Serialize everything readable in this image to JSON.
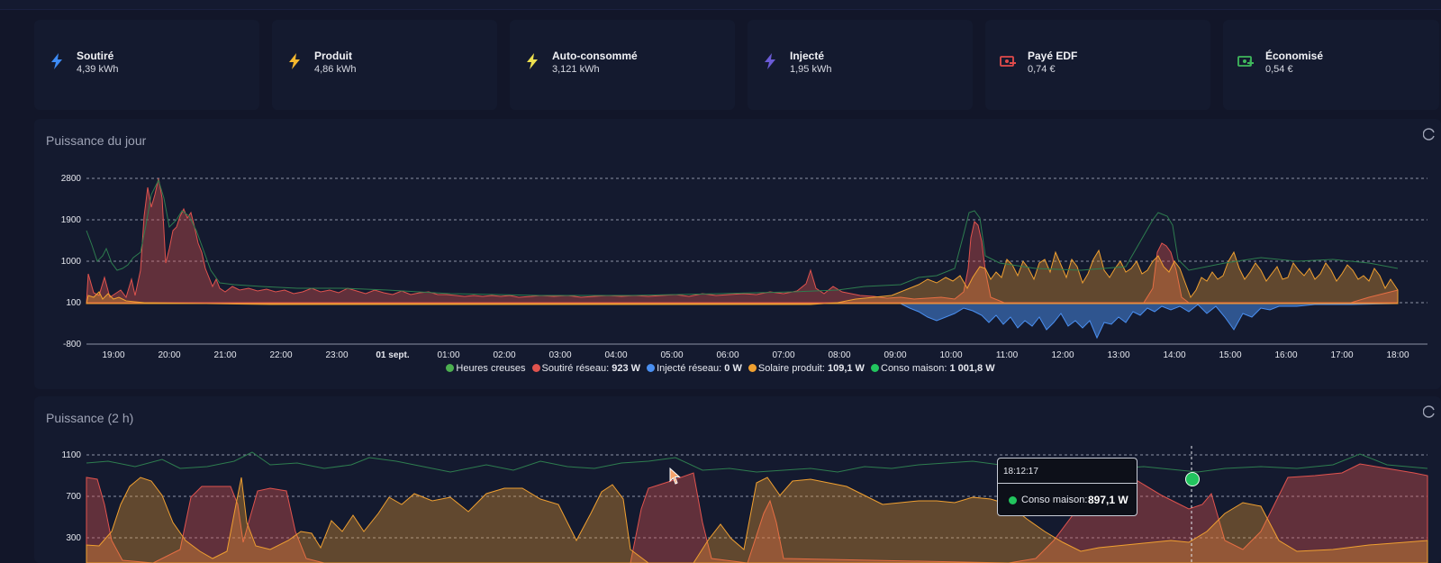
{
  "stats": [
    {
      "title": "Soutiré",
      "value": "4,39 kWh",
      "icon": "lightning-icon",
      "color": "#3d8bf5"
    },
    {
      "title": "Produit",
      "value": "4,86 kWh",
      "icon": "lightning-icon",
      "color": "#f5b82e"
    },
    {
      "title": "Auto-consommé",
      "value": "3,121 kWh",
      "icon": "lightning-icon",
      "color": "#ede04f"
    },
    {
      "title": "Injecté",
      "value": "1,95 kWh",
      "icon": "lightning-icon",
      "color": "#6b5bd6"
    },
    {
      "title": "Payé EDF",
      "value": "0,74 €",
      "icon": "money-out-icon",
      "color": "#e24b4b"
    },
    {
      "title": "Économisé",
      "value": "0,54 €",
      "icon": "money-in-icon",
      "color": "#3fb85c"
    }
  ],
  "colors": {
    "soutire": "#e0534e",
    "injecte": "#4a8ff0",
    "solaire": "#f0a030",
    "conso": "#22c55e",
    "heures_creuses": "#4caf50"
  },
  "panel_day": {
    "title": "Puissance du jour",
    "legend": [
      {
        "label": "Heures creuses",
        "value": ""
      },
      {
        "label": "Soutiré réseau:",
        "value": "923 W"
      },
      {
        "label": "Injecté réseau:",
        "value": "0 W"
      },
      {
        "label": "Solaire produit:",
        "value": "109,1 W"
      },
      {
        "label": "Conso maison:",
        "value": "1 001,8 W"
      }
    ]
  },
  "panel_2h": {
    "title": "Puissance (2 h)",
    "tooltip": {
      "time": "18:12:17",
      "label": "Conso maison:",
      "value": "897,1 W"
    }
  },
  "chart_data": [
    {
      "type": "area",
      "title": "Puissance du jour",
      "x_ticks": [
        "19:00",
        "20:00",
        "21:00",
        "22:00",
        "23:00",
        "01 sept.",
        "01:00",
        "02:00",
        "03:00",
        "04:00",
        "05:00",
        "06:00",
        "07:00",
        "08:00",
        "09:00",
        "10:00",
        "11:00",
        "12:00",
        "13:00",
        "14:00",
        "15:00",
        "16:00",
        "17:00",
        "18:00"
      ],
      "y_ticks": [
        "2800",
        "1900",
        "1000",
        "100",
        "-800"
      ],
      "ylim": [
        -800,
        2800
      ],
      "grid": true,
      "legend_position": "bottom",
      "series": [
        {
          "name": "Soutiré réseau",
          "values": [
            [
              18.55,
              600
            ],
            [
              18.7,
              150
            ],
            [
              19.0,
              180
            ],
            [
              19.3,
              400
            ],
            [
              19.55,
              500
            ],
            [
              19.75,
              2700
            ],
            [
              19.9,
              1800
            ],
            [
              20.1,
              1000
            ],
            [
              20.4,
              2000
            ],
            [
              20.6,
              900
            ],
            [
              21.0,
              300
            ],
            [
              22.0,
              230
            ],
            [
              23.0,
              220
            ],
            [
              0.0,
              200
            ],
            [
              1.0,
              190
            ],
            [
              2.0,
              160
            ],
            [
              3.0,
              150
            ],
            [
              4.0,
              160
            ],
            [
              5.0,
              170
            ],
            [
              6.0,
              170
            ],
            [
              7.0,
              200
            ],
            [
              8.0,
              250
            ],
            [
              8.5,
              300
            ],
            [
              9.0,
              200
            ],
            [
              10.0,
              100
            ],
            [
              10.6,
              400
            ],
            [
              10.75,
              1800
            ],
            [
              10.9,
              700
            ],
            [
              11.2,
              100
            ],
            [
              12.0,
              0
            ],
            [
              13.0,
              0
            ],
            [
              14.0,
              200
            ],
            [
              14.2,
              1200
            ],
            [
              14.5,
              700
            ],
            [
              15.0,
              100
            ],
            [
              16.0,
              50
            ],
            [
              17.0,
              100
            ],
            [
              18.0,
              400
            ],
            [
              18.55,
              600
            ]
          ]
        },
        {
          "name": "Injecté réseau",
          "values": [
            [
              18.55,
              0
            ],
            [
              9.0,
              0
            ],
            [
              10.0,
              -100
            ],
            [
              10.5,
              -400
            ],
            [
              11.0,
              -300
            ],
            [
              11.5,
              -500
            ],
            [
              12.0,
              -600
            ],
            [
              12.5,
              -700
            ],
            [
              13.0,
              -750
            ],
            [
              13.5,
              -400
            ],
            [
              14.0,
              -300
            ],
            [
              14.5,
              -200
            ],
            [
              15.0,
              -200
            ],
            [
              15.5,
              -500
            ],
            [
              16.0,
              -100
            ],
            [
              17.0,
              -50
            ],
            [
              18.55,
              0
            ]
          ]
        },
        {
          "name": "Solaire produit",
          "values": [
            [
              18.55,
              400
            ],
            [
              18.8,
              100
            ],
            [
              19.5,
              0
            ],
            [
              8.0,
              30
            ],
            [
              9.0,
              150
            ],
            [
              10.0,
              500
            ],
            [
              10.5,
              800
            ],
            [
              11.0,
              600
            ],
            [
              11.5,
              1100
            ],
            [
              12.0,
              900
            ],
            [
              12.5,
              1200
            ],
            [
              13.0,
              800
            ],
            [
              13.5,
              1100
            ],
            [
              14.0,
              600
            ],
            [
              14.5,
              1000
            ],
            [
              15.0,
              300
            ],
            [
              15.5,
              1100
            ],
            [
              16.0,
              800
            ],
            [
              16.5,
              1000
            ],
            [
              17.0,
              700
            ],
            [
              17.5,
              900
            ],
            [
              18.0,
              500
            ],
            [
              18.55,
              300
            ]
          ]
        },
        {
          "name": "Conso maison",
          "values": [
            [
              18.55,
              800
            ],
            [
              19.0,
              300
            ],
            [
              19.75,
              2700
            ],
            [
              20.4,
              2000
            ],
            [
              21.0,
              300
            ],
            [
              2.0,
              160
            ],
            [
              8.0,
              250
            ],
            [
              9.0,
              300
            ],
            [
              10.0,
              500
            ],
            [
              10.75,
              1950
            ],
            [
              11.2,
              600
            ],
            [
              12.0,
              800
            ],
            [
              13.0,
              700
            ],
            [
              14.2,
              1950
            ],
            [
              14.5,
              1500
            ],
            [
              15.0,
              400
            ],
            [
              16.0,
              700
            ],
            [
              17.0,
              900
            ],
            [
              18.0,
              900
            ],
            [
              18.55,
              1000
            ]
          ]
        }
      ]
    },
    {
      "type": "area",
      "title": "Puissance (2 h)",
      "y_ticks": [
        "1100",
        "700",
        "300"
      ],
      "grid": true,
      "series": [
        {
          "name": "Soutiré réseau",
          "values": [
            [
              0,
              800
            ],
            [
              5,
              750
            ],
            [
              10,
              150
            ],
            [
              15,
              700
            ],
            [
              20,
              680
            ],
            [
              25,
              200
            ],
            [
              30,
              700
            ],
            [
              35,
              650
            ],
            [
              40,
              150
            ],
            [
              45,
              100
            ],
            [
              50,
              300
            ],
            [
              55,
              700
            ],
            [
              60,
              780
            ],
            [
              65,
              200
            ],
            [
              70,
              700
            ],
            [
              75,
              650
            ],
            [
              80,
              100
            ],
            [
              90,
              150
            ],
            [
              100,
              350
            ],
            [
              105,
              600
            ],
            [
              110,
              250
            ],
            [
              115,
              500
            ],
            [
              120,
              600
            ]
          ]
        },
        {
          "name": "Solaire produit",
          "values": [
            [
              0,
              200
            ],
            [
              5,
              650
            ],
            [
              10,
              500
            ],
            [
              15,
              250
            ],
            [
              20,
              300
            ],
            [
              25,
              250
            ],
            [
              30,
              350
            ],
            [
              35,
              500
            ],
            [
              40,
              650
            ],
            [
              45,
              700
            ],
            [
              50,
              600
            ],
            [
              55,
              250
            ],
            [
              60,
              150
            ],
            [
              65,
              650
            ],
            [
              70,
              700
            ],
            [
              75,
              600
            ],
            [
              80,
              550
            ],
            [
              90,
              300
            ],
            [
              100,
              150
            ],
            [
              105,
              200
            ],
            [
              110,
              450
            ],
            [
              115,
              300
            ],
            [
              120,
              250
            ]
          ]
        },
        {
          "name": "Conso maison",
          "values": [
            [
              0,
              900
            ],
            [
              10,
              950
            ],
            [
              20,
              1050
            ],
            [
              30,
              900
            ],
            [
              40,
              950
            ],
            [
              50,
              900
            ],
            [
              60,
              900
            ],
            [
              70,
              950
            ],
            [
              80,
              1000
            ],
            [
              90,
              900
            ],
            [
              100,
              897.1
            ],
            [
              110,
              850
            ],
            [
              120,
              900
            ]
          ]
        }
      ]
    }
  ]
}
